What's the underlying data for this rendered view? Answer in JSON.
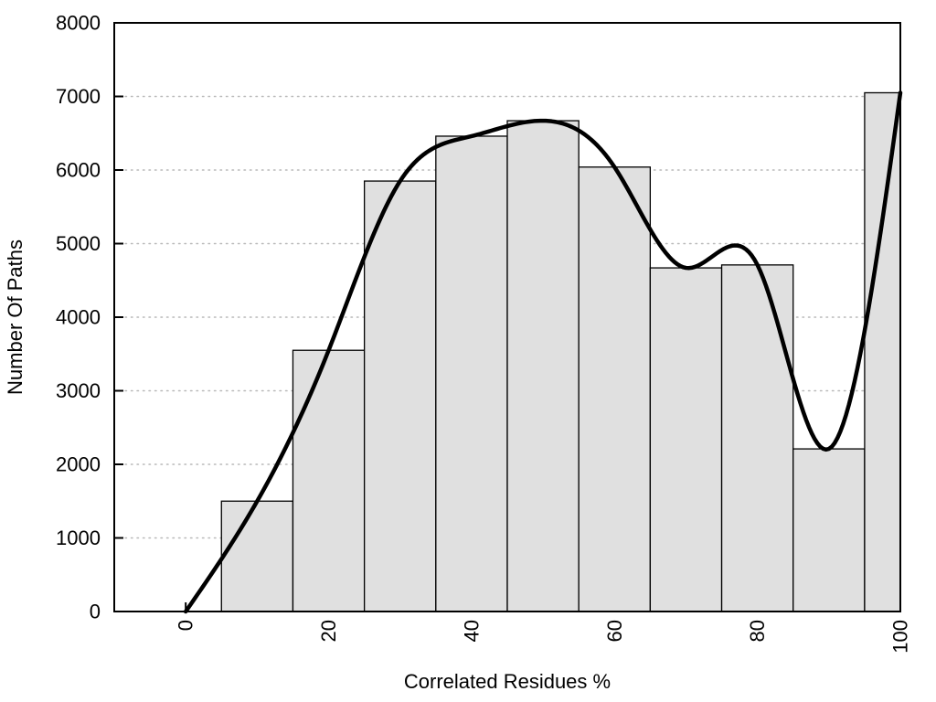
{
  "chart_data": {
    "type": "bar",
    "subtype": "histogram_with_smooth_spline_overlay",
    "title": "",
    "xlabel": "Correlated Residues %",
    "ylabel": "Number Of Paths",
    "xlim": [
      -10,
      100
    ],
    "ylim": [
      0,
      8000
    ],
    "x_ticks": [
      0,
      20,
      40,
      60,
      80,
      100
    ],
    "y_ticks": [
      0,
      1000,
      2000,
      3000,
      4000,
      5000,
      6000,
      7000,
      8000
    ],
    "x_tick_labels_rotated_degrees": -90,
    "grid": {
      "horizontal_dotted": true,
      "vertical": false,
      "legend": "none"
    },
    "bars": {
      "bin_width": 10,
      "note_last_bin_clipped_at": 100,
      "bins": [
        {
          "x_start": 5,
          "x_end": 15,
          "value": 1500
        },
        {
          "x_start": 15,
          "x_end": 25,
          "value": 3550
        },
        {
          "x_start": 25,
          "x_end": 35,
          "value": 5850
        },
        {
          "x_start": 35,
          "x_end": 45,
          "value": 6460
        },
        {
          "x_start": 45,
          "x_end": 55,
          "value": 6670
        },
        {
          "x_start": 55,
          "x_end": 65,
          "value": 6040
        },
        {
          "x_start": 65,
          "x_end": 75,
          "value": 4670
        },
        {
          "x_start": 75,
          "x_end": 85,
          "value": 4710
        },
        {
          "x_start": 85,
          "x_end": 95,
          "value": 2210
        },
        {
          "x_start": 95,
          "x_end": 100,
          "value": 7050
        }
      ]
    },
    "series": [
      {
        "name": "smooth-spline-curve",
        "type": "line",
        "x": [
          0,
          10,
          20,
          30,
          40,
          50,
          60,
          70,
          80,
          90,
          100
        ],
        "y": [
          0,
          1500,
          3550,
          5850,
          6460,
          6670,
          6040,
          4670,
          4710,
          2210,
          7050
        ]
      }
    ],
    "colors": {
      "background": "#ffffff",
      "bar_fill": "#e0e0e0",
      "bar_stroke": "#000000",
      "curve": "#000000",
      "border": "#000000",
      "grid_dots": "#b9b9b9",
      "text": "#000000"
    }
  }
}
